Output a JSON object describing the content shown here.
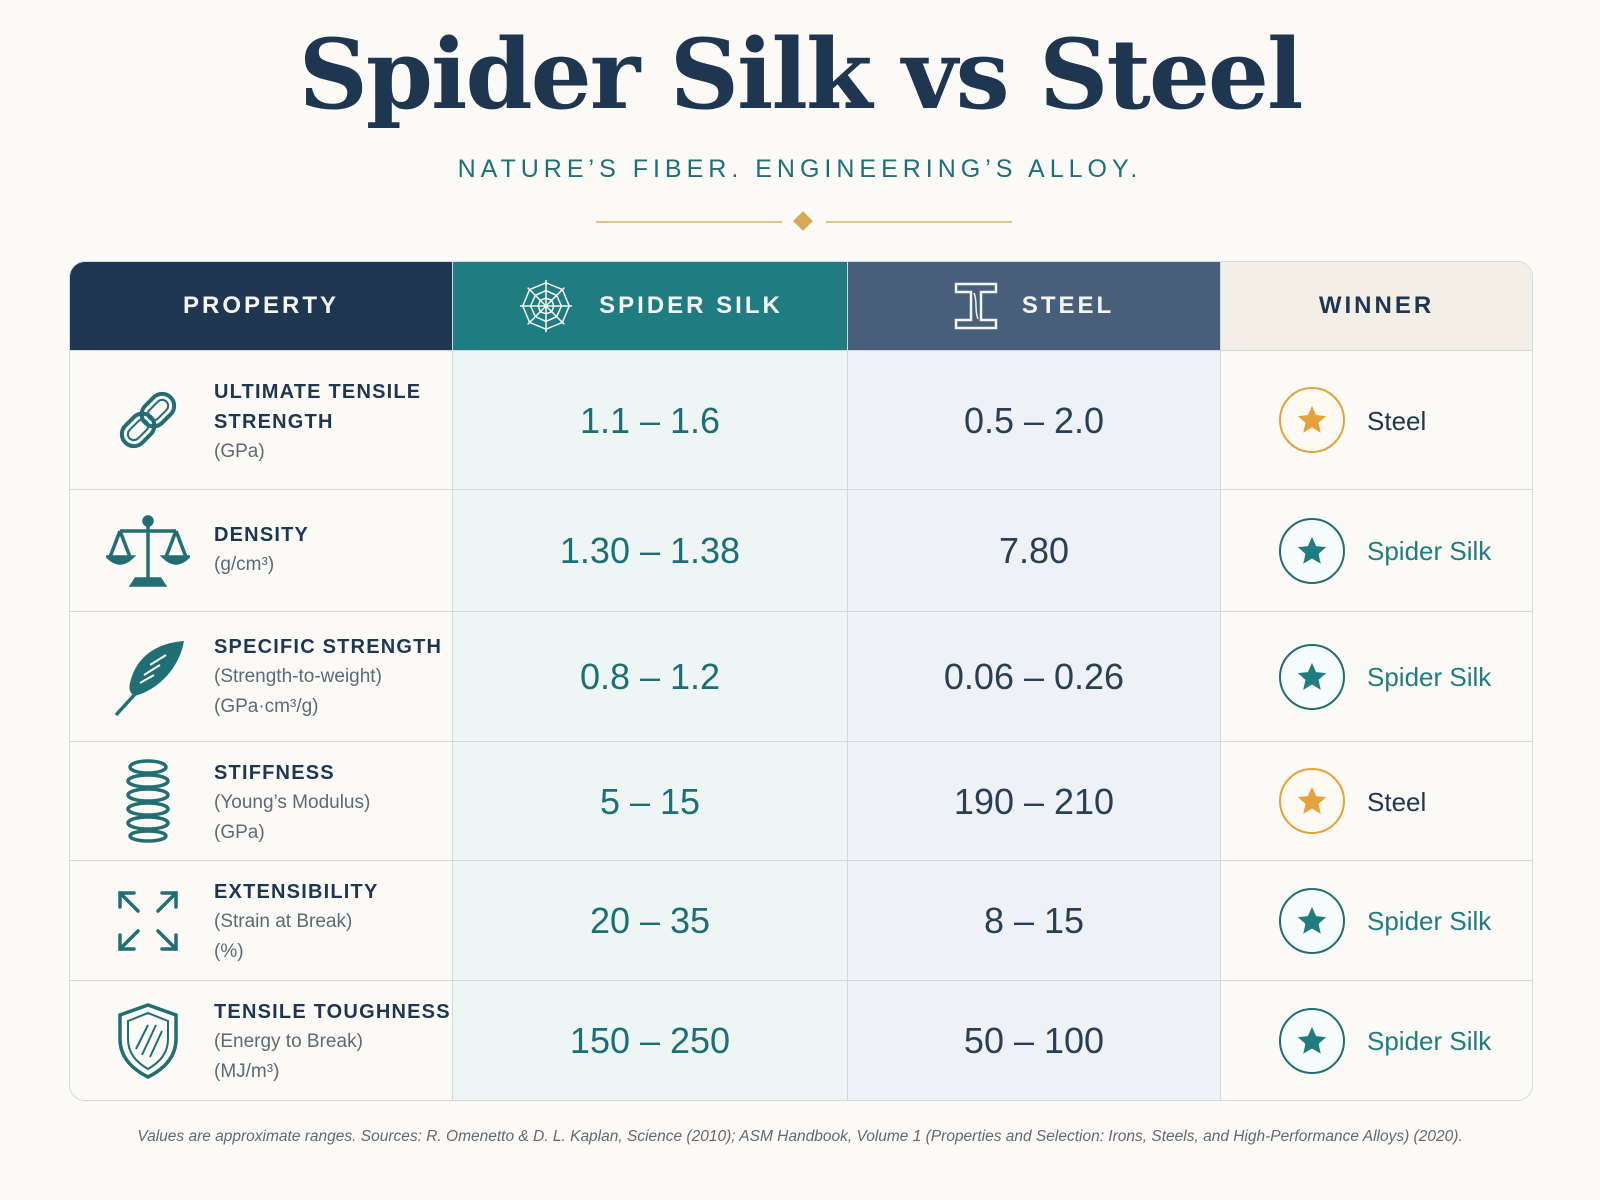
{
  "title": "Spider Silk vs Steel",
  "subtitle": "NATURE’S FIBER. ENGINEERING’S ALLOY.",
  "headers": {
    "property": "PROPERTY",
    "silk": "SPIDER SILK",
    "steel": "STEEL",
    "winner": "WINNER"
  },
  "rows": [
    {
      "icon": "chain-link-icon",
      "name_lines": [
        "ULTIMATE TENSILE",
        "STRENGTH"
      ],
      "sub_lines": [
        "(GPa)"
      ],
      "silk": "1.1 – 1.6",
      "steel": "0.5 – 2.0",
      "winner": "Steel",
      "winner_color": "#e5a23c"
    },
    {
      "icon": "balance-scale-icon",
      "name_lines": [
        "DENSITY"
      ],
      "sub_lines": [
        "(g/cm³)"
      ],
      "silk": "1.30 – 1.38",
      "steel": "7.80",
      "winner": "Spider Silk",
      "winner_color": "#1f7c80"
    },
    {
      "icon": "feather-icon",
      "name_lines": [
        "SPECIFIC STRENGTH"
      ],
      "sub_lines": [
        "(Strength-to-weight)",
        "(GPa·cm³/g)"
      ],
      "silk": "0.8 – 1.2",
      "steel": "0.06 – 0.26",
      "winner": "Spider Silk",
      "winner_color": "#1f7c80"
    },
    {
      "icon": "spring-coil-icon",
      "name_lines": [
        "STIFFNESS"
      ],
      "sub_lines": [
        "(Young’s Modulus)",
        "(GPa)"
      ],
      "silk": "5 – 15",
      "steel": "190 – 210",
      "winner": "Steel",
      "winner_color": "#e5a23c"
    },
    {
      "icon": "expand-arrows-icon",
      "name_lines": [
        "EXTENSIBILITY"
      ],
      "sub_lines": [
        "(Strain at Break)",
        "(%)"
      ],
      "silk": "20 – 35",
      "steel": "8 – 15",
      "winner": "Spider Silk",
      "winner_color": "#1f7c80"
    },
    {
      "icon": "shield-icon",
      "name_lines": [
        "TENSILE TOUGHNESS"
      ],
      "sub_lines": [
        "(Energy to Break)",
        "(MJ/m³)"
      ],
      "silk": "150 – 250",
      "steel": "50 – 100",
      "winner": "Spider Silk",
      "winner_color": "#1f7c80"
    }
  ],
  "footnote": "Values are approximate ranges. Sources: R. Omenetto & D. L. Kaplan, Science (2010); ASM Handbook, Volume 1 (Properties and Selection: Irons, Steels, and High-Performance Alloys) (2020)."
}
